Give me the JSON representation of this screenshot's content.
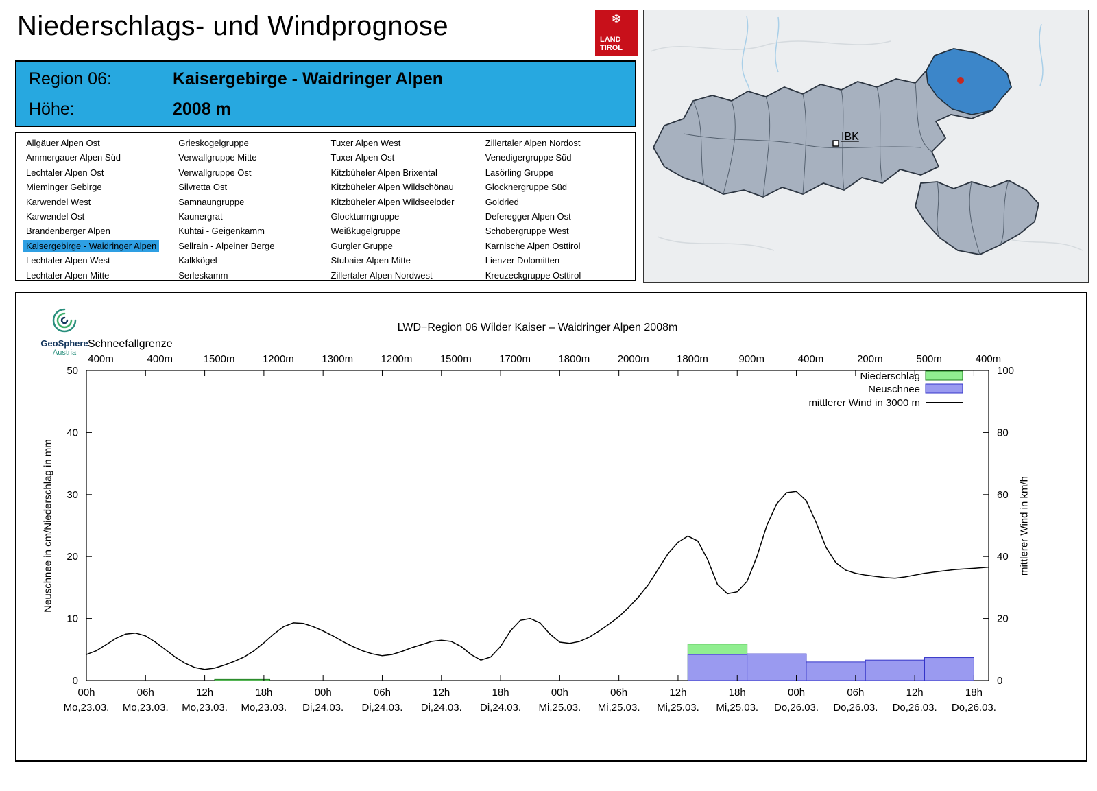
{
  "header": {
    "title": "Niederschlags- und Windprognose"
  },
  "logo": {
    "line1": "LAND",
    "line2": "TIROL",
    "snowflake_icon": "❄"
  },
  "banner": {
    "region_label": "Region 06:",
    "region_value": "Kaisergebirge - Waidringer Alpen",
    "altitude_label": "Höhe:",
    "altitude_value": "2008 m"
  },
  "region_list": {
    "selected": "Kaisergebirge - Waidringer Alpen",
    "columns": [
      [
        "Allgäuer Alpen Ost",
        "Ammergauer Alpen Süd",
        "Lechtaler Alpen Ost",
        "Mieminger Gebirge",
        "Karwendel West",
        "Karwendel Ost",
        "Brandenberger Alpen",
        "Kaisergebirge - Waidringer Alpen",
        "Lechtaler Alpen West",
        "Lechtaler Alpen Mitte"
      ],
      [
        "Grieskogelgruppe",
        "Verwallgruppe Mitte",
        "Verwallgruppe Ost",
        "Silvretta Ost",
        "Samnaungruppe",
        "Kaunergrat",
        "Kühtai - Geigenkamm",
        "Sellrain - Alpeiner Berge",
        "Kalkkögel",
        "Serleskamm"
      ],
      [
        "Tuxer Alpen West",
        "Tuxer Alpen Ost",
        "Kitzbüheler Alpen Brixental",
        "Kitzbüheler Alpen Wildschönau",
        "Kitzbüheler Alpen Wildseeloder",
        "Glockturmgruppe",
        "Weißkugelgruppe",
        "Gurgler Gruppe",
        "Stubaier Alpen Mitte",
        "Zillertaler Alpen Nordwest"
      ],
      [
        "Zillertaler Alpen Nordost",
        "Venedigergruppe Süd",
        "Lasörling Gruppe",
        "Glocknergruppe Süd",
        "Goldried",
        "Deferegger Alpen Ost",
        "Schobergruppe West",
        "Karnische Alpen Osttirol",
        "Lienzer Dolomitten",
        "Kreuzeckgruppe Osttirol"
      ]
    ]
  },
  "map": {
    "marker_label": "IBK"
  },
  "chart_data": {
    "type": "bar+line",
    "title": "LWD−Region 06 Wilder Kaiser – Waidringer Alpen 2008m",
    "brand": {
      "name": "GeoSphere",
      "sub": "Austria"
    },
    "schneefallgrenze": {
      "label": "Schneefallgrenze",
      "values": [
        "400m",
        "400m",
        "1500m",
        "1200m",
        "1300m",
        "1200m",
        "1500m",
        "1700m",
        "1800m",
        "2000m",
        "1800m",
        "900m",
        "400m",
        "200m",
        "500m",
        "400m"
      ]
    },
    "x_ticks": {
      "hours": [
        "00h",
        "06h",
        "12h",
        "18h",
        "00h",
        "06h",
        "12h",
        "18h",
        "00h",
        "06h",
        "12h",
        "18h",
        "00h",
        "06h",
        "12h",
        "18h"
      ],
      "dates": [
        "Mo,23.03.",
        "Mo,23.03.",
        "Mo,23.03.",
        "Mo,23.03.",
        "Di,24.03.",
        "Di,24.03.",
        "Di,24.03.",
        "Di,24.03.",
        "Mi,25.03.",
        "Mi,25.03.",
        "Mi,25.03.",
        "Mi,25.03.",
        "Do,26.03.",
        "Do,26.03.",
        "Do,26.03.",
        "Do,26.03."
      ]
    },
    "y_left": {
      "label": "Neuschnee in cm/Niederschlag in mm",
      "min": 0,
      "max": 50,
      "ticks": [
        0,
        10,
        20,
        30,
        40,
        50
      ]
    },
    "y_right": {
      "label": "mittlerer Wind in km/h",
      "min": 0,
      "max": 100,
      "ticks": [
        0,
        20,
        40,
        60,
        80,
        100
      ]
    },
    "x_hours_max": 91.5,
    "legend": [
      {
        "label": "Niederschlag",
        "type": "box",
        "fill": "#90EE90",
        "stroke": "#1e7d1e"
      },
      {
        "label": "Neuschnee",
        "type": "box",
        "fill": "#9a9af0",
        "stroke": "#3434c8"
      },
      {
        "label": "mittlerer Wind in 3000 m",
        "type": "line",
        "stroke": "#000000"
      }
    ],
    "series": {
      "niederschlag_mm": [
        {
          "start": 13,
          "end": 18.6,
          "value": 0.18
        },
        {
          "start": 61,
          "end": 67,
          "value": 5.9
        }
      ],
      "neuschnee_cm": [
        {
          "start": 61,
          "end": 67,
          "value": 4.2
        },
        {
          "start": 67,
          "end": 73,
          "value": 4.3
        },
        {
          "start": 73,
          "end": 79,
          "value": 3.0
        },
        {
          "start": 79,
          "end": 85,
          "value": 3.3
        },
        {
          "start": 85,
          "end": 90,
          "value": 3.7
        }
      ],
      "wind_kmh": [
        [
          0,
          8.4
        ],
        [
          1,
          9.6
        ],
        [
          2,
          11.6
        ],
        [
          3,
          13.6
        ],
        [
          4,
          15.0
        ],
        [
          5,
          15.3
        ],
        [
          6,
          14.4
        ],
        [
          7,
          12.4
        ],
        [
          8,
          10.0
        ],
        [
          9,
          7.6
        ],
        [
          10,
          5.6
        ],
        [
          11,
          4.2
        ],
        [
          12,
          3.6
        ],
        [
          13,
          4.0
        ],
        [
          14,
          5.0
        ],
        [
          15,
          6.2
        ],
        [
          16,
          7.6
        ],
        [
          17,
          9.6
        ],
        [
          18,
          12.2
        ],
        [
          19,
          15.0
        ],
        [
          20,
          17.4
        ],
        [
          21,
          18.6
        ],
        [
          22,
          18.4
        ],
        [
          23,
          17.4
        ],
        [
          24,
          16.0
        ],
        [
          25,
          14.4
        ],
        [
          26,
          12.6
        ],
        [
          27,
          11.0
        ],
        [
          28,
          9.6
        ],
        [
          29,
          8.6
        ],
        [
          30,
          8.0
        ],
        [
          31,
          8.4
        ],
        [
          32,
          9.4
        ],
        [
          33,
          10.6
        ],
        [
          34,
          11.6
        ],
        [
          35,
          12.6
        ],
        [
          36,
          13.0
        ],
        [
          37,
          12.6
        ],
        [
          38,
          11.0
        ],
        [
          39,
          8.4
        ],
        [
          40,
          6.6
        ],
        [
          41,
          7.6
        ],
        [
          42,
          11.0
        ],
        [
          43,
          16.0
        ],
        [
          44,
          19.4
        ],
        [
          45,
          20.0
        ],
        [
          46,
          18.6
        ],
        [
          47,
          15.0
        ],
        [
          48,
          12.4
        ],
        [
          49,
          12.0
        ],
        [
          50,
          12.6
        ],
        [
          51,
          14.0
        ],
        [
          52,
          16.0
        ],
        [
          53,
          18.2
        ],
        [
          54,
          20.6
        ],
        [
          55,
          23.6
        ],
        [
          56,
          27.0
        ],
        [
          57,
          31.0
        ],
        [
          58,
          36.0
        ],
        [
          59,
          41.0
        ],
        [
          60,
          44.6
        ],
        [
          61,
          46.6
        ],
        [
          62,
          45.0
        ],
        [
          63,
          39.0
        ],
        [
          64,
          31.0
        ],
        [
          65,
          28.0
        ],
        [
          66,
          28.6
        ],
        [
          67,
          32.0
        ],
        [
          68,
          40.0
        ],
        [
          69,
          50.0
        ],
        [
          70,
          57.0
        ],
        [
          71,
          60.6
        ],
        [
          72,
          61.0
        ],
        [
          73,
          58.0
        ],
        [
          74,
          51.0
        ],
        [
          75,
          43.0
        ],
        [
          76,
          38.0
        ],
        [
          77,
          35.6
        ],
        [
          78,
          34.6
        ],
        [
          79,
          34.0
        ],
        [
          80,
          33.6
        ],
        [
          81,
          33.2
        ],
        [
          82,
          33.0
        ],
        [
          83,
          33.4
        ],
        [
          84,
          34.0
        ],
        [
          85,
          34.6
        ],
        [
          86,
          35.0
        ],
        [
          87,
          35.4
        ],
        [
          88,
          35.8
        ],
        [
          89,
          36.0
        ],
        [
          90,
          36.2
        ],
        [
          91.5,
          36.6
        ]
      ]
    }
  }
}
